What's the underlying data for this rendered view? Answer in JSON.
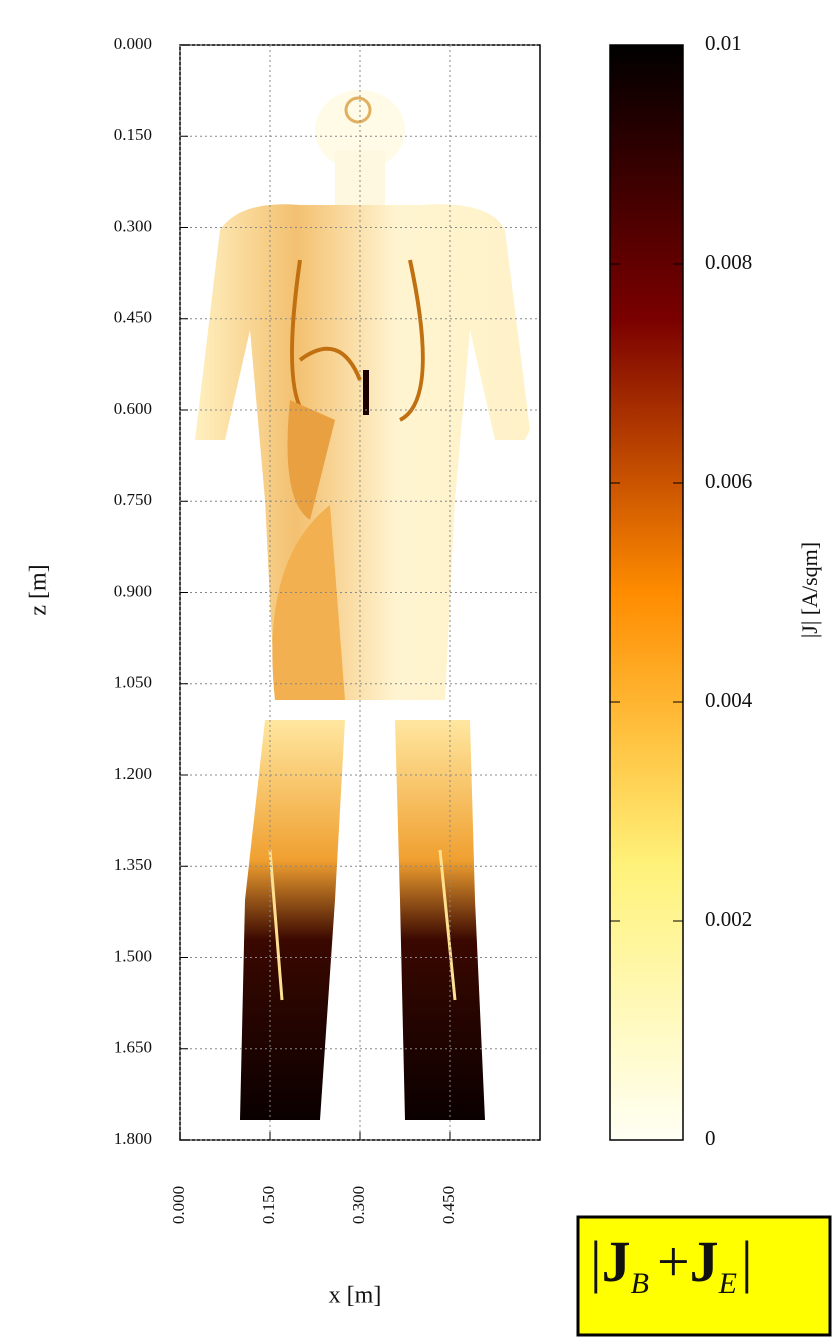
{
  "chart_data": {
    "type": "heatmap",
    "xlabel": "x [m]",
    "ylabel": "z [m]",
    "xlim": [
      0,
      0.6
    ],
    "ylim": [
      0,
      1.8
    ],
    "y_inverted": true,
    "xticks": [
      {
        "value": 0,
        "label": "0.000"
      },
      {
        "value": 0.15,
        "label": "0.150"
      },
      {
        "value": 0.3,
        "label": "0.300"
      },
      {
        "value": 0.45,
        "label": "0.450"
      }
    ],
    "yticks": [
      {
        "value": 0,
        "label": "0.000"
      },
      {
        "value": 0.15,
        "label": "0.150"
      },
      {
        "value": 0.3,
        "label": "0.300"
      },
      {
        "value": 0.45,
        "label": "0.450"
      },
      {
        "value": 0.6,
        "label": "0.600"
      },
      {
        "value": 0.75,
        "label": "0.750"
      },
      {
        "value": 0.9,
        "label": "0.900"
      },
      {
        "value": 1.05,
        "label": "1.050"
      },
      {
        "value": 1.2,
        "label": "1.200"
      },
      {
        "value": 1.35,
        "label": "1.350"
      },
      {
        "value": 1.5,
        "label": "1.500"
      },
      {
        "value": 1.65,
        "label": "1.650"
      },
      {
        "value": 1.8,
        "label": "1.800"
      }
    ],
    "grid": true,
    "colorbar": {
      "label": "|J| [A/sqm]",
      "lim": [
        0,
        0.01
      ],
      "ticks": [
        0,
        0.002,
        0.004,
        0.006,
        0.008,
        0.01
      ],
      "colormap": [
        "#fffff4",
        "#fff27a",
        "#ff8c00",
        "#7a0000",
        "#000000"
      ]
    },
    "formula": [
      "|",
      "J",
      "B",
      "+",
      "J",
      "E",
      "|"
    ]
  }
}
